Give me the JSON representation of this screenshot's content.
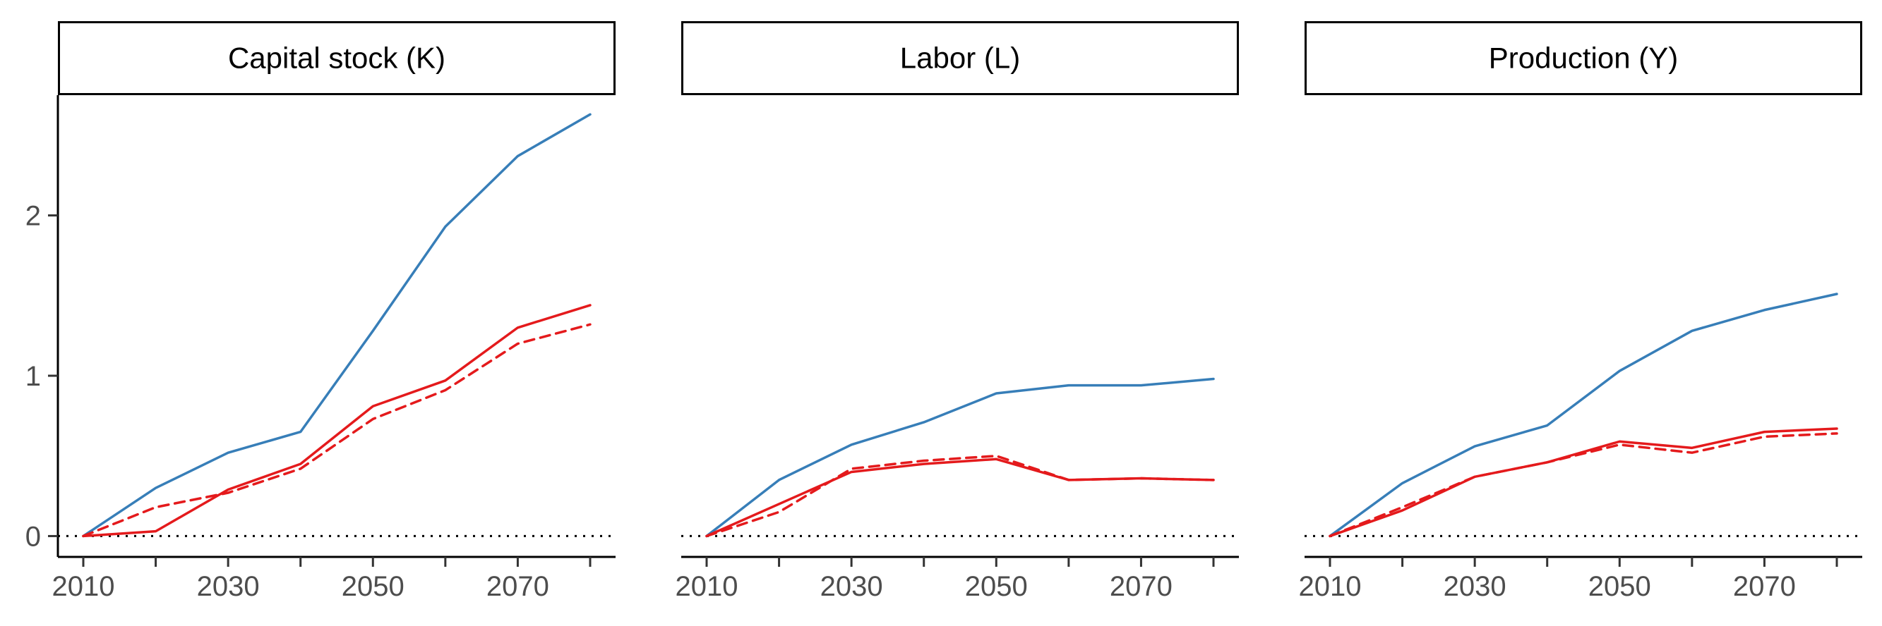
{
  "chart_data": {
    "type": "line",
    "title": "",
    "xlabel": "",
    "ylabel": "",
    "x": [
      2010,
      2020,
      2030,
      2040,
      2050,
      2060,
      2070,
      2080
    ],
    "xlim": [
      2010,
      2080
    ],
    "ylim": [
      -0.13,
      2.75
    ],
    "xticks": [
      "2010",
      "2030",
      "2050",
      "2070"
    ],
    "yticks": [
      "0",
      "1",
      "2"
    ],
    "grid": false,
    "legend": "none",
    "reference_line": {
      "y": 0,
      "style": "dotted",
      "color": "#000000"
    },
    "series_styles": [
      {
        "color": "#377eb8",
        "dash": "solid"
      },
      {
        "color": "#e41a1c",
        "dash": "solid"
      },
      {
        "color": "#e41a1c",
        "dash": "dashed"
      }
    ],
    "panels": [
      {
        "title": "Capital stock (K)",
        "series": [
          {
            "values": [
              0,
              0.3,
              0.52,
              0.65,
              1.28,
              1.93,
              2.37,
              2.63
            ]
          },
          {
            "values": [
              0,
              0.03,
              0.29,
              0.45,
              0.81,
              0.97,
              1.3,
              1.44
            ]
          },
          {
            "values": [
              0,
              0.18,
              0.27,
              0.42,
              0.73,
              0.91,
              1.2,
              1.32
            ]
          }
        ]
      },
      {
        "title": "Labor (L)",
        "series": [
          {
            "values": [
              0,
              0.35,
              0.57,
              0.71,
              0.89,
              0.94,
              0.94,
              0.98
            ]
          },
          {
            "values": [
              0,
              0.2,
              0.4,
              0.45,
              0.48,
              0.35,
              0.36,
              0.35
            ]
          },
          {
            "values": [
              0,
              0.15,
              0.42,
              0.47,
              0.5,
              0.35,
              0.36,
              0.35
            ]
          }
        ]
      },
      {
        "title": "Production (Y)",
        "series": [
          {
            "values": [
              0,
              0.33,
              0.56,
              0.69,
              1.03,
              1.28,
              1.41,
              1.51
            ]
          },
          {
            "values": [
              0,
              0.16,
              0.37,
              0.46,
              0.59,
              0.55,
              0.65,
              0.67
            ]
          },
          {
            "values": [
              0,
              0.18,
              0.37,
              0.46,
              0.57,
              0.52,
              0.62,
              0.64
            ]
          }
        ]
      }
    ]
  }
}
